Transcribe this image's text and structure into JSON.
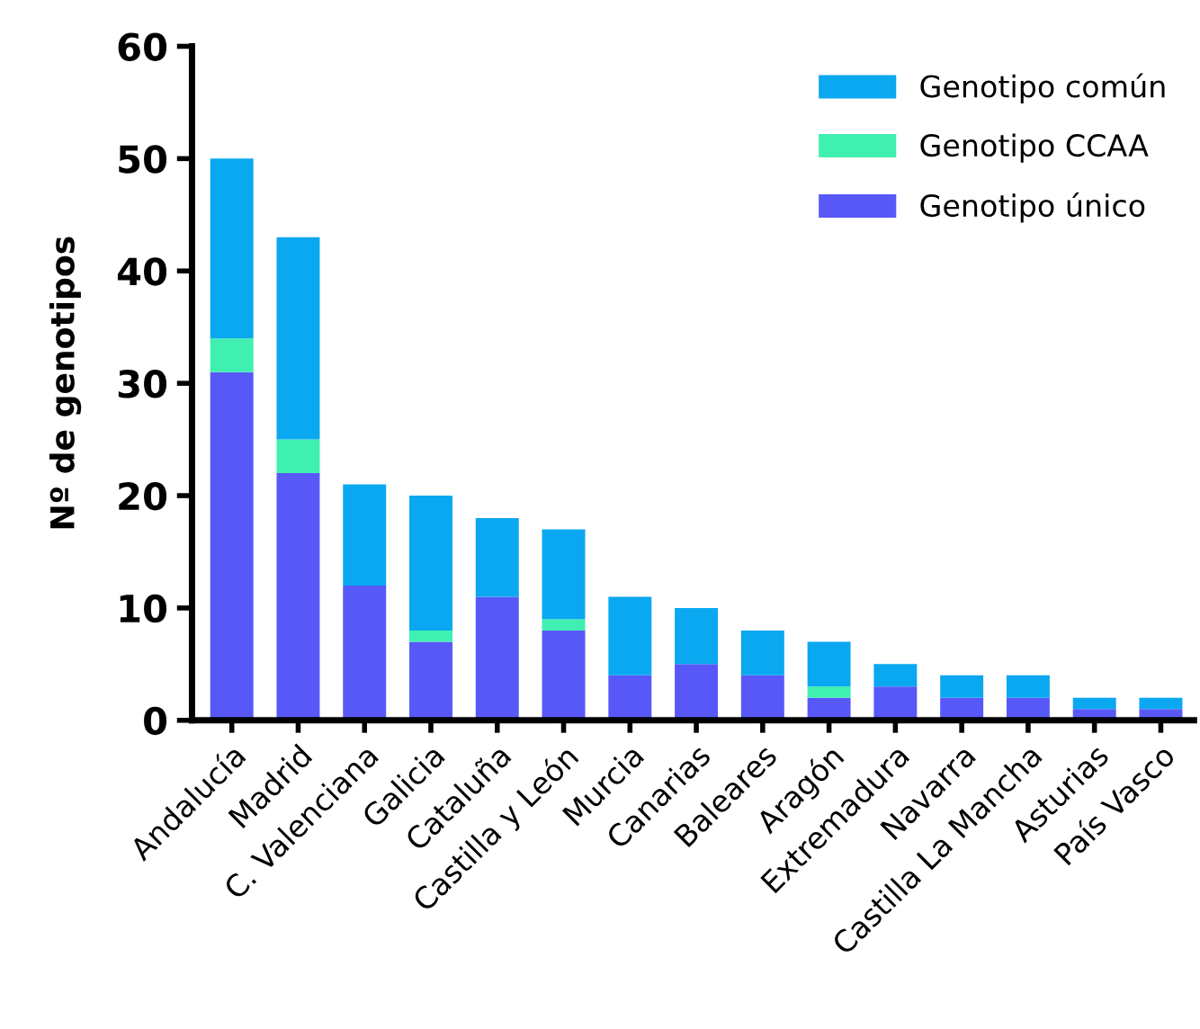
{
  "chart_data": {
    "type": "bar",
    "stacked": true,
    "ylabel": "Nº de genotipos",
    "ylim": [
      0,
      60
    ],
    "yticks": [
      0,
      10,
      20,
      30,
      40,
      50,
      60
    ],
    "grid": false,
    "legend": "top right",
    "categories": [
      "Andalucía",
      "Madrid",
      "C. Valenciana",
      "Galicia",
      "Cataluña",
      "Castilla y León",
      "Murcia",
      "Canarias",
      "Baleares",
      "Aragón",
      "Extremadura",
      "Navarra",
      "Castilla La Mancha",
      "Asturias",
      "País Vasco"
    ],
    "series": [
      {
        "name": "Genotipo único",
        "color": "#5858f8",
        "values": [
          31,
          22,
          12,
          7,
          11,
          8,
          4,
          5,
          4,
          2,
          3,
          2,
          2,
          1,
          1
        ]
      },
      {
        "name": "Genotipo CCAA",
        "color": "#3ff0b0",
        "values": [
          3,
          3,
          0,
          1,
          0,
          1,
          0,
          0,
          0,
          1,
          0,
          0,
          0,
          0,
          0
        ]
      },
      {
        "name": "Genotipo común",
        "color": "#0aa8f0",
        "values": [
          16,
          18,
          9,
          12,
          7,
          8,
          7,
          5,
          4,
          4,
          2,
          2,
          2,
          1,
          1
        ]
      }
    ]
  }
}
